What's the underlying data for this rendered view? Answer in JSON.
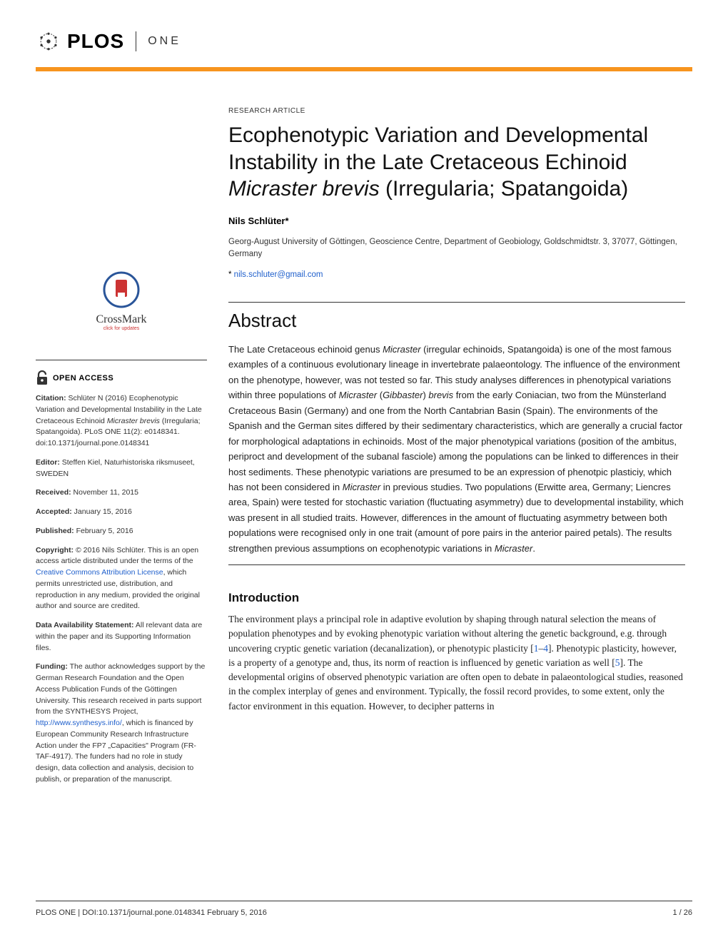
{
  "journal": {
    "logo_text": "PLOS",
    "brand_text": "ONE",
    "accent_color": "#f7941e"
  },
  "article": {
    "type": "RESEARCH ARTICLE",
    "title_part1": "Ecophenotypic Variation and Developmental Instability in the Late Cretaceous Echinoid ",
    "title_italic": "Micraster brevis",
    "title_part2": " (Irregularia; Spatangoida)",
    "author": "Nils Schlüter*",
    "affiliation": "Georg-August University of Göttingen, Geoscience Centre, Department of Geobiology, Goldschmidtstr. 3, 37077, Göttingen, Germany",
    "corr_prefix": "* ",
    "corr_email": "nils.schluter@gmail.com"
  },
  "abstract": {
    "heading": "Abstract",
    "text_html": "The Late Cretaceous echinoid genus <span class='italic'>Micraster</span> (irregular echinoids, Spatangoida) is one of the most famous examples of a continuous evolutionary lineage in invertebrate palaeontology. The influence of the environment on the phenotype, however, was not tested so far. This study analyses differences in phenotypical variations within three populations of <span class='italic'>Micraster</span> (<span class='italic'>Gibbaster</span>) <span class='italic'>brevis</span> from the early Coniacian, two from the Münsterland Cretaceous Basin (Germany) and one from the North Cantabrian Basin (Spain). The environments of the Spanish and the German sites differed by their sedimentary characteristics, which are generally a crucial factor for morphological adaptations in echinoids. Most of the major phenotypical variations (position of the ambitus, periproct and development of the subanal fasciole) among the populations can be linked to differences in their host sediments. These phenotypic variations are presumed to be an expression of phenotpic plasticiy, which has not been considered in <span class='italic'>Micraster</span> in previous studies. Two populations (Erwitte area, Germany; Liencres area, Spain) were tested for stochastic variation (fluctuating asymmetry) due to developmental instability, which was present in all studied traits. However, differences in the amount of fluctuating asymmetry between both populations were recognised only in one trait (amount of pore pairs in the anterior paired petals). The results strengthen previous assumptions on ecophenotypic variations in <span class='italic'>Micraster</span>."
  },
  "introduction": {
    "heading": "Introduction",
    "text_html": "The environment plays a principal role in adaptive evolution by shaping through natural selection the means of population phenotypes and by evoking phenotypic variation without altering the genetic background, e.g. through uncovering cryptic genetic variation (decanalization), or phenotypic plasticity [<a class='ref-link' href='#' data-name='citation-link' data-interactable='true'>1</a>–<a class='ref-link' href='#' data-name='citation-link' data-interactable='true'>4</a>]. Phenotypic plasticity, however, is a property of a genotype and, thus, its norm of reaction is influenced by genetic variation as well [<a class='ref-link' href='#' data-name='citation-link' data-interactable='true'>5</a>]. The developmental origins of observed phenotypic variation are often open to debate in palaeontological studies, reasoned in the complex interplay of genes and environment. Typically, the fossil record provides, to some extent, only the factor environment in this equation. However, to decipher patterns in"
  },
  "sidebar": {
    "crossmark_label": "CrossMark",
    "crossmark_sub": "click for updates",
    "open_access": "OPEN ACCESS",
    "citation_label": "Citation:",
    "citation_text": " Schlüter N (2016) Ecophenotypic Variation and Developmental Instability in the Late Cretaceous Echinoid <i>Micraster brevis</i> (Irregularia; Spatangoida). PLoS ONE 11(2): e0148341. doi:10.1371/journal.pone.0148341",
    "editor_label": "Editor:",
    "editor_text": " Steffen Kiel, Naturhistoriska riksmuseet, SWEDEN",
    "received_label": "Received:",
    "received_text": " November 11, 2015",
    "accepted_label": "Accepted:",
    "accepted_text": " January 15, 2016",
    "published_label": "Published:",
    "published_text": " February 5, 2016",
    "copyright_label": "Copyright:",
    "copyright_text_pre": " © 2016 Nils Schlüter. This is an open access article distributed under the terms of the ",
    "copyright_link": "Creative Commons Attribution License",
    "copyright_text_post": ", which permits unrestricted use, distribution, and reproduction in any medium, provided the original author and source are credited.",
    "data_label": "Data Availability Statement:",
    "data_text": " All relevant data are within the paper and its Supporting Information files.",
    "funding_label": "Funding:",
    "funding_text_pre": " The author acknowledges support by the German Research Foundation and the Open Access Publication Funds of the Göttingen University. This research received in parts support from the SYNTHESYS Project, ",
    "funding_link": "http://www.synthesys.info/",
    "funding_text_post": ", which is financed by European Community Research Infrastructure Action under the FP7 „Capacities\" Program (FR-TAF-4917). The funders had no role in study design, data collection and analysis, decision to publish, or preparation of the manuscript."
  },
  "footer": {
    "left": "PLOS ONE | DOI:10.1371/journal.pone.0148341    February 5, 2016",
    "right": "1 / 26"
  }
}
